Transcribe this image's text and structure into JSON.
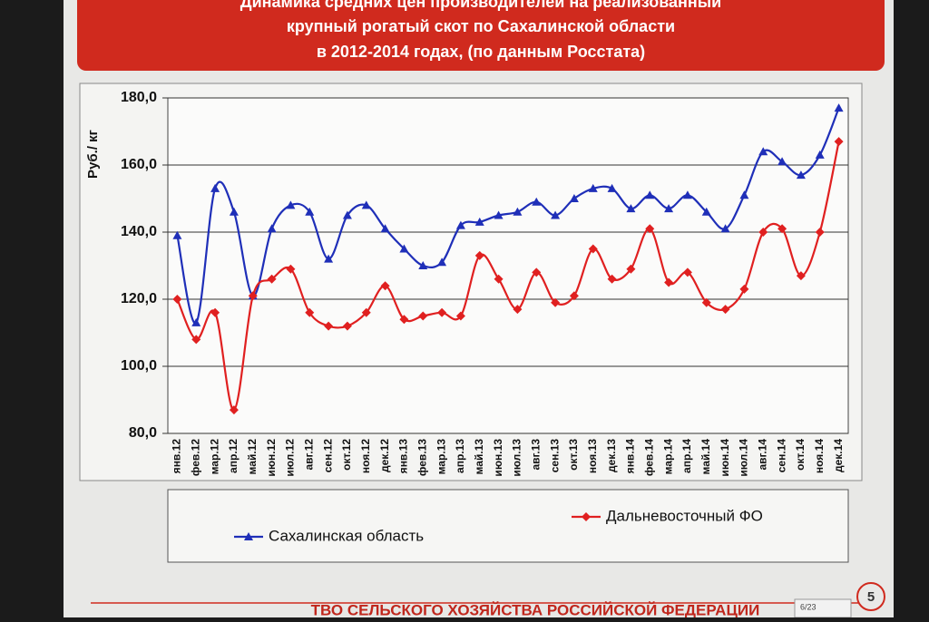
{
  "chart_data": {
    "type": "line",
    "title": [
      "Динамика средних цен производителей на реализованный",
      "крупный рогатый скот по Сахалинской области",
      "в 2012-2014 годах, (по данным Росстата)"
    ],
    "y_label": "Руб./ кг",
    "categories": [
      "янв.12",
      "фев.12",
      "мар.12",
      "апр.12",
      "май.12",
      "июн.12",
      "июл.12",
      "авг.12",
      "сен.12",
      "окт.12",
      "ноя.12",
      "дек.12",
      "янв.13",
      "фев.13",
      "мар.13",
      "апр.13",
      "май.13",
      "июн.13",
      "июл.13",
      "авг.13",
      "сен.13",
      "окт.13",
      "ноя.13",
      "дек.13",
      "янв.14",
      "фев.14",
      "мар.14",
      "апр.14",
      "май.14",
      "июн.14",
      "июл.14",
      "авг.14",
      "сен.14",
      "окт.14",
      "ноя.14",
      "дек.14"
    ],
    "series": [
      {
        "name": "Сахалинская область",
        "color": "#1f2fb8",
        "marker": "triangle",
        "values": [
          139,
          113,
          153,
          146,
          121,
          141,
          148,
          146,
          132,
          145,
          148,
          141,
          135,
          130,
          131,
          142,
          143,
          145,
          146,
          149,
          145,
          150,
          153,
          153,
          147,
          151,
          147,
          151,
          146,
          141,
          151,
          164,
          161,
          157,
          163,
          177
        ]
      },
      {
        "name": "Дальневосточный ФО",
        "color": "#e02020",
        "marker": "diamond",
        "values": [
          120,
          108,
          116,
          87,
          121,
          126,
          129,
          116,
          112,
          112,
          116,
          124,
          114,
          115,
          116,
          115,
          133,
          126,
          117,
          128,
          119,
          121,
          135,
          126,
          129,
          141,
          125,
          128,
          119,
          117,
          123,
          140,
          141,
          127,
          140,
          167
        ]
      }
    ],
    "ylim": [
      80,
      180
    ],
    "yticks": [
      {
        "value": 80,
        "label": "80,0"
      },
      {
        "value": 100,
        "label": "100,0"
      },
      {
        "value": 120,
        "label": "120,0"
      },
      {
        "value": 140,
        "label": "140,0"
      },
      {
        "value": 160,
        "label": "160,0"
      },
      {
        "value": 180,
        "label": "180,0"
      }
    ],
    "grid": true,
    "legend": "bottom"
  },
  "slide": {
    "footer": "ТВО СЕЛЬСКОГО ХОЗЯЙСТВА РОССИЙСКОЙ ФЕДЕРАЦИИ",
    "page_number": "5",
    "page_indicator": "6/23"
  }
}
